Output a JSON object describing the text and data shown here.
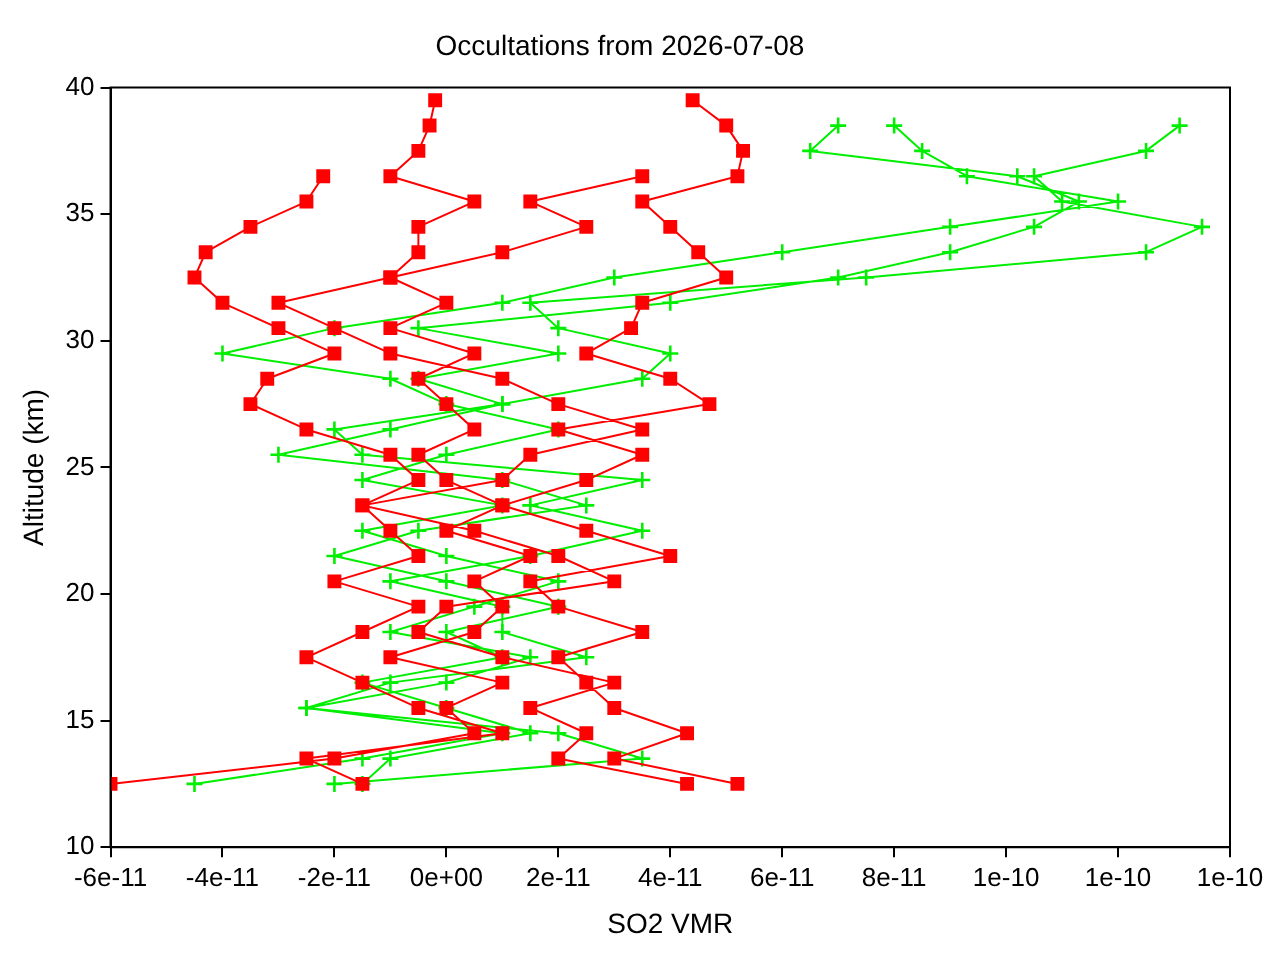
{
  "chart_data": {
    "type": "line",
    "title": "Occultations from 2026-07-08",
    "xlabel": "SO2 VMR",
    "ylabel": "Altitude (km)",
    "xlim": [
      -6e-11,
      1.4e-10
    ],
    "ylim": [
      10,
      40
    ],
    "xticks": [
      {
        "value": -6e-11,
        "label": "-6e-11"
      },
      {
        "value": -4e-11,
        "label": "-4e-11"
      },
      {
        "value": -2e-11,
        "label": "-2e-11"
      },
      {
        "value": 0,
        "label": "0e+00"
      },
      {
        "value": 2e-11,
        "label": "2e-11"
      },
      {
        "value": 4e-11,
        "label": "4e-11"
      },
      {
        "value": 6e-11,
        "label": "6e-11"
      },
      {
        "value": 8e-11,
        "label": "8e-11"
      },
      {
        "value": 1e-10,
        "label": "1e-10"
      },
      {
        "value": 1.2e-10,
        "label": "1e-10"
      },
      {
        "value": 1.4e-10,
        "label": "1e-10"
      }
    ],
    "yticks": [
      10,
      15,
      20,
      25,
      30,
      35,
      40
    ],
    "grid": false,
    "legend": false,
    "series": [
      {
        "color": "#ff0000",
        "marker": "square",
        "line_style": "solid",
        "x": [
          -6e-11,
          -2e-11,
          5e-12,
          0,
          1e-11,
          -1e-11,
          5e-12,
          1e-11,
          5e-12,
          1.5e-11,
          0,
          1e-11,
          0,
          -5e-12,
          5e-12,
          0,
          -5e-12,
          5e-12,
          -1e-11,
          0,
          -1e-11,
          -5e-12,
          -5e-12,
          5e-12,
          -1e-11,
          -5e-12,
          -3e-12,
          -2e-12,
          null,
          5.2e-11,
          3e-11,
          4.3e-11,
          3e-11,
          2.5e-11,
          2e-11,
          3.5e-11,
          2e-11,
          1.5e-11,
          4e-11,
          2.5e-11,
          1e-11,
          2.5e-11,
          3.5e-11,
          2e-11,
          4.7e-11,
          4e-11,
          2.5e-11,
          3.3e-11,
          3.5e-11,
          5e-11,
          4.5e-11,
          4e-11,
          3.5e-11,
          5.2e-11,
          5.3e-11,
          5e-11,
          4.4e-11,
          null,
          -1.5e-11,
          -2.5e-11,
          1e-11,
          -5e-12,
          -1.5e-11,
          -2.5e-11,
          -1.5e-11,
          -5e-12,
          -2e-11,
          -5e-12,
          -1e-11,
          -1.5e-11,
          -5e-12,
          -1e-11,
          -2.5e-11,
          -3.5e-11,
          -3.2e-11,
          -2e-11,
          -3e-11,
          -4e-11,
          -4.5e-11,
          -4.3e-11,
          -3.5e-11,
          -2.5e-11,
          -2.2e-11,
          null,
          4.3e-11,
          2e-11,
          2.5e-11,
          1.5e-11,
          3e-11,
          1e-11,
          -5e-12,
          0,
          3e-11,
          2e-11,
          5e-12,
          -1.5e-11,
          1e-11,
          1.5e-11,
          3.5e-11,
          2e-11,
          1e-11,
          -1e-11,
          -2e-11,
          -3e-11,
          -1e-11,
          1e-11,
          2.5e-11,
          1.5e-11,
          3.5e-11
        ],
        "values": [
          12.5,
          13.5,
          14.5,
          15.5,
          16.5,
          17.5,
          18.5,
          19.5,
          20.5,
          21.5,
          22.5,
          23.5,
          24.5,
          25.5,
          26.5,
          27.5,
          28.5,
          29.5,
          30.5,
          31.5,
          32.5,
          33.5,
          34.5,
          35.5,
          36.5,
          37.5,
          38.5,
          39.5,
          null,
          12.5,
          13.5,
          14.5,
          15.5,
          16.5,
          17.5,
          18.5,
          19.5,
          20.5,
          21.5,
          22.5,
          23.5,
          24.5,
          25.5,
          26.5,
          27.5,
          28.5,
          29.5,
          30.5,
          31.5,
          32.5,
          33.5,
          34.5,
          35.5,
          36.5,
          37.5,
          38.5,
          39.5,
          null,
          12.5,
          13.5,
          14.5,
          15.5,
          16.5,
          17.5,
          18.5,
          19.5,
          20.5,
          21.5,
          22.5,
          23.5,
          24.5,
          25.5,
          26.5,
          27.5,
          28.5,
          29.5,
          30.5,
          31.5,
          32.5,
          33.5,
          34.5,
          35.5,
          36.5,
          null,
          12.5,
          13.5,
          14.5,
          15.5,
          16.5,
          17.5,
          18.5,
          19.5,
          20.5,
          21.5,
          22.5,
          23.5,
          24.5,
          25.5,
          26.5,
          27.5,
          28.5,
          29.5,
          30.5,
          31.5,
          32.5,
          33.5,
          34.5,
          35.5,
          36.5
        ]
      },
      {
        "color": "#00ee00",
        "marker": "cross",
        "line_style": "solid",
        "x": [
          -4.5e-11,
          -1.5e-11,
          1e-11,
          -2.5e-11,
          0,
          1.5e-11,
          -1e-11,
          5e-12,
          2e-11,
          0,
          -1.5e-11,
          1e-11,
          -1.5e-11,
          0,
          2e-11,
          0,
          -1e-11,
          -4e-11,
          -2e-11,
          1e-11,
          3e-11,
          6e-11,
          9e-11,
          1.2e-10,
          9.3e-11,
          8.5e-11,
          8e-11,
          null,
          -2e-11,
          3.5e-11,
          2e-11,
          -2.5e-11,
          -1e-11,
          2.5e-11,
          1e-11,
          1e-11,
          -1e-11,
          1.5e-11,
          3.5e-11,
          1.5e-11,
          3.5e-11,
          -1.5e-11,
          -2e-11,
          1e-11,
          3.5e-11,
          4e-11,
          2e-11,
          1.5e-11,
          7.5e-11,
          1.25e-10,
          1.35e-10,
          1.1e-10,
          1.05e-10,
          1.25e-10,
          1.31e-10,
          null,
          -1.5e-11,
          -1e-11,
          1.5e-11,
          0,
          -1.5e-11,
          1e-11,
          0,
          2e-11,
          0,
          -2e-11,
          -5e-12,
          2.5e-11,
          1e-11,
          -3e-11,
          -1e-11,
          1e-11,
          -5e-12,
          2e-11,
          -5e-12,
          4e-11,
          7e-11,
          9e-11,
          1.05e-10,
          1.13e-10,
          1.02e-10,
          6.5e-11,
          7e-11
        ],
        "values": [
          12.5,
          13.5,
          14.5,
          15.5,
          16.5,
          17.5,
          18.5,
          19.5,
          20.5,
          21.5,
          22.5,
          23.5,
          24.5,
          25.5,
          26.5,
          27.5,
          28.5,
          29.5,
          30.5,
          31.5,
          32.5,
          33.5,
          34.5,
          35.5,
          36.5,
          37.5,
          38.5,
          null,
          12.5,
          13.5,
          14.5,
          15.5,
          16.5,
          17.5,
          18.5,
          19.5,
          20.5,
          21.5,
          22.5,
          23.5,
          24.5,
          25.5,
          26.5,
          27.5,
          28.5,
          29.5,
          30.5,
          31.5,
          32.5,
          33.5,
          34.5,
          35.5,
          36.5,
          37.5,
          38.5,
          null,
          12.5,
          13.5,
          14.5,
          15.5,
          16.5,
          17.5,
          18.5,
          19.5,
          20.5,
          21.5,
          22.5,
          23.5,
          24.5,
          25.5,
          26.5,
          27.5,
          28.5,
          29.5,
          30.5,
          31.5,
          32.5,
          33.5,
          34.5,
          35.5,
          36.5,
          37.5,
          38.5
        ]
      }
    ]
  }
}
